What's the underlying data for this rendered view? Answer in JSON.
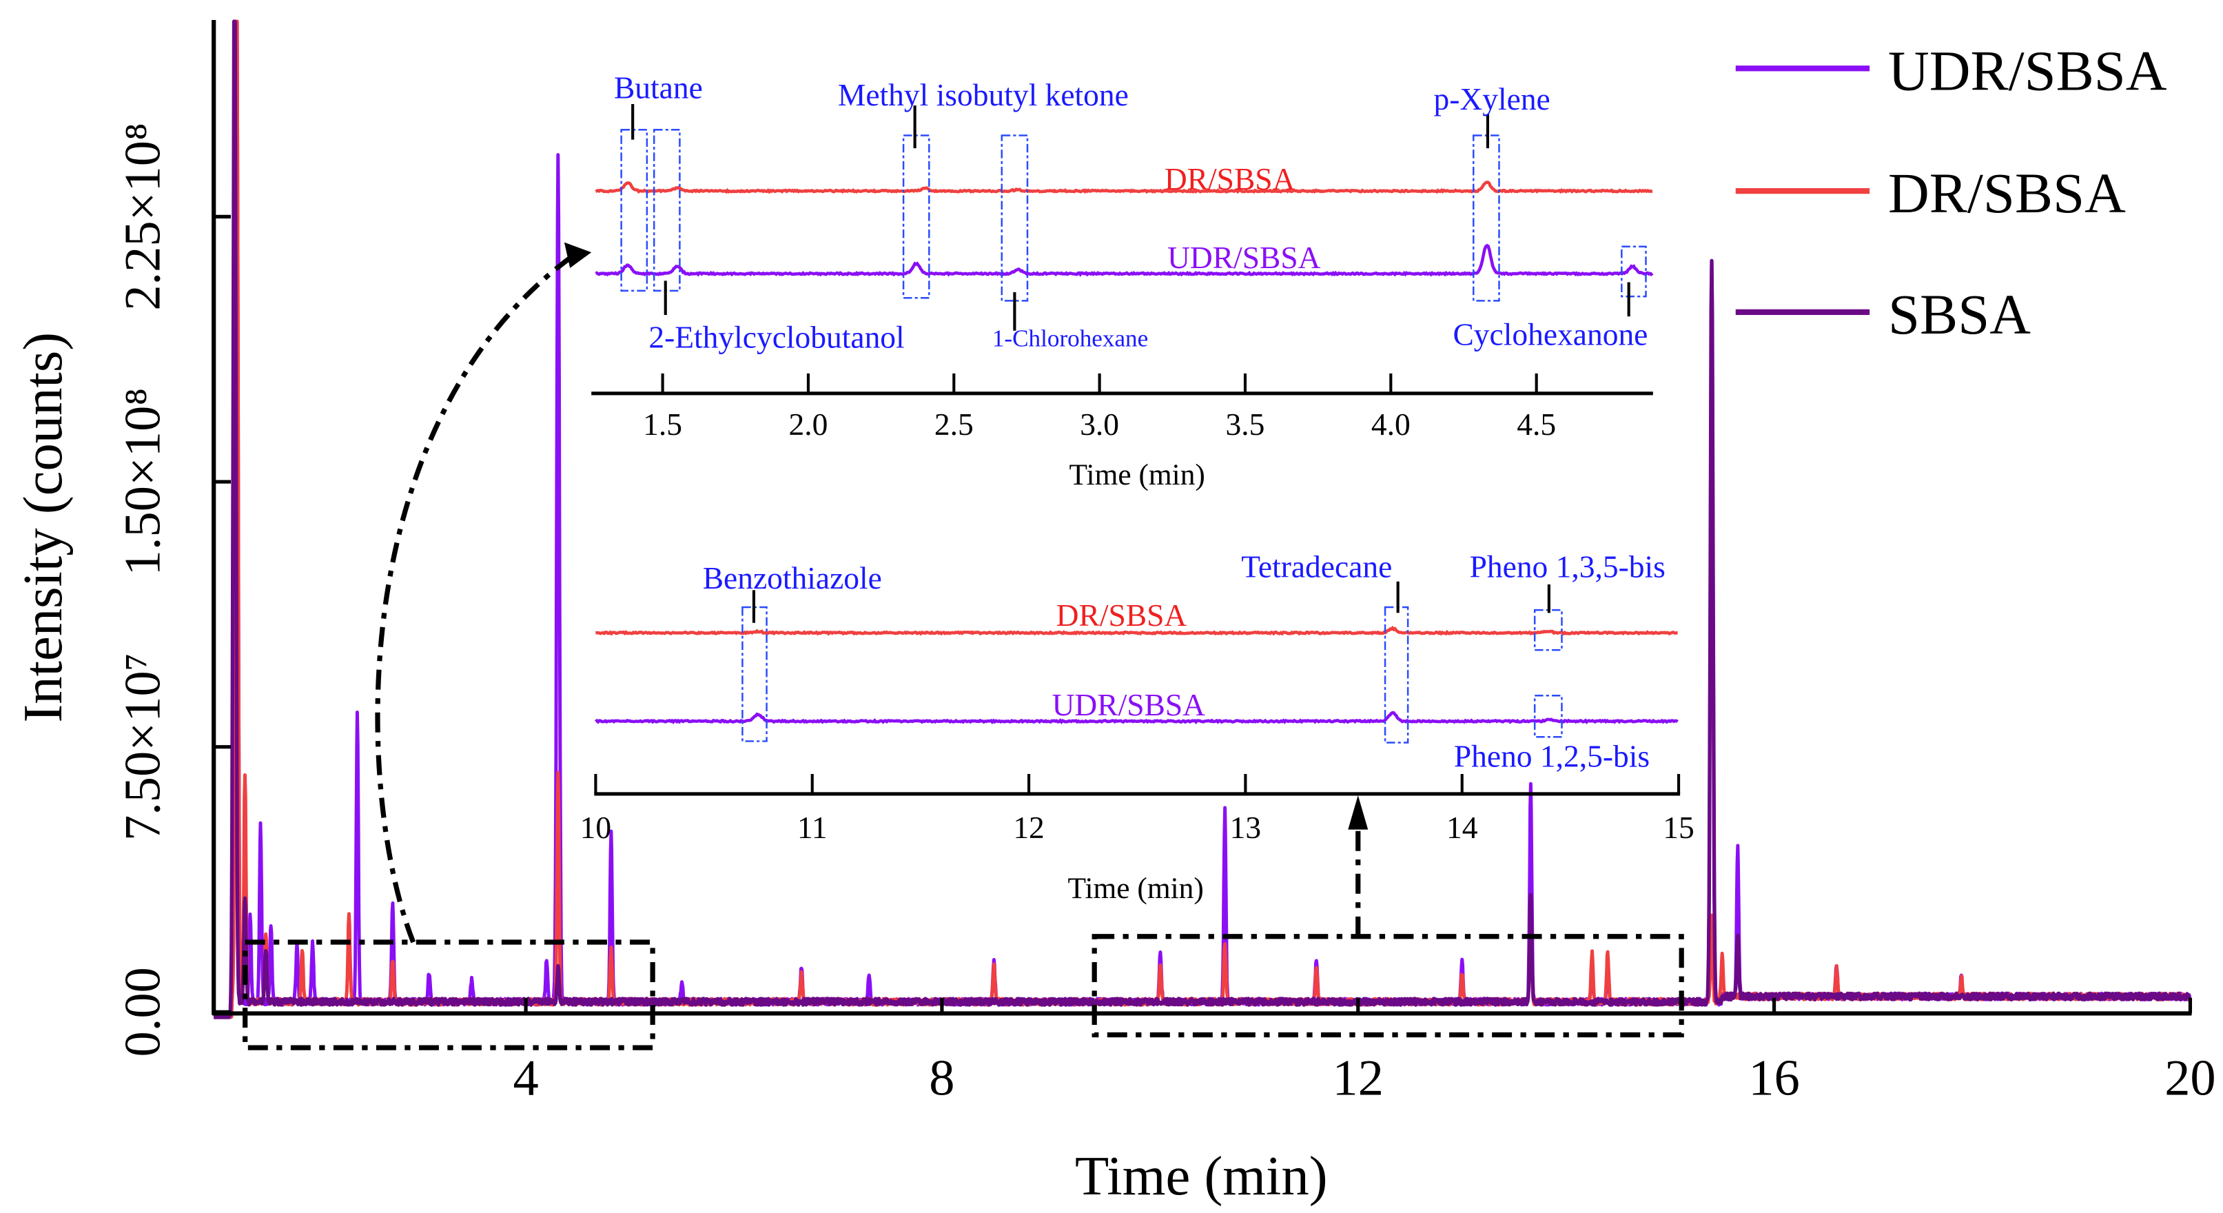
{
  "chart_data": {
    "type": "line",
    "xlabel": "Time (min)",
    "ylabel": "Intensity (counts)",
    "xlim": [
      1,
      20
    ],
    "ylim": [
      0,
      280000000
    ],
    "xticks": [
      4,
      8,
      12,
      16,
      20
    ],
    "xtick_labels": [
      "4",
      "8",
      "12",
      "16",
      "20"
    ],
    "yticks": [
      0,
      75000000,
      150000000,
      225000000
    ],
    "ytick_labels": [
      "0.00",
      "7.50×10⁷",
      "1.50×10⁸",
      "2.25×10⁸"
    ],
    "legend": {
      "placement": "top-right",
      "entries": [
        "UDR/SBSA",
        "DR/SBSA",
        "SBSA"
      ]
    },
    "colors": {
      "UDR/SBSA": "#8a0ff5",
      "DR/SBSA": "#f04040",
      "SBSA": "#6a0a86",
      "annotation": "#1a1aff"
    },
    "series": [
      {
        "name": "UDR/SBSA",
        "peaks": [
          [
            1.22,
            300000000
          ],
          [
            1.35,
            25000000
          ],
          [
            1.45,
            50000000
          ],
          [
            1.55,
            22000000
          ],
          [
            1.8,
            16000000
          ],
          [
            1.95,
            17000000
          ],
          [
            2.38,
            82000000
          ],
          [
            2.72,
            28000000
          ],
          [
            3.07,
            8000000
          ],
          [
            3.48,
            6000000
          ],
          [
            4.2,
            12000000
          ],
          [
            4.31,
            240000000
          ],
          [
            4.82,
            49000000
          ],
          [
            5.5,
            6000000
          ],
          [
            6.65,
            10000000
          ],
          [
            7.3,
            8000000
          ],
          [
            8.5,
            12000000
          ],
          [
            10.1,
            14000000
          ],
          [
            10.72,
            54000000
          ],
          [
            11.6,
            12000000
          ],
          [
            13.0,
            12000000
          ],
          [
            13.66,
            62000000
          ],
          [
            14.25,
            10000000
          ],
          [
            14.4,
            12000000
          ],
          [
            15.4,
            210000000
          ],
          [
            15.65,
            42000000
          ],
          [
            16.6,
            8000000
          ],
          [
            17.8,
            6000000
          ]
        ]
      },
      {
        "name": "DR/SBSA",
        "peaks": [
          [
            1.22,
            300000000
          ],
          [
            1.3,
            65000000
          ],
          [
            1.5,
            20000000
          ],
          [
            1.85,
            15000000
          ],
          [
            2.3,
            25000000
          ],
          [
            2.72,
            12000000
          ],
          [
            4.31,
            65000000
          ],
          [
            4.82,
            15000000
          ],
          [
            6.65,
            8000000
          ],
          [
            8.5,
            10000000
          ],
          [
            10.1,
            10000000
          ],
          [
            10.72,
            17000000
          ],
          [
            11.6,
            10000000
          ],
          [
            13.0,
            8000000
          ],
          [
            13.66,
            28000000
          ],
          [
            14.25,
            14000000
          ],
          [
            14.4,
            14000000
          ],
          [
            15.4,
            25000000
          ],
          [
            15.5,
            12000000
          ],
          [
            16.6,
            8000000
          ],
          [
            17.8,
            5000000
          ]
        ]
      },
      {
        "name": "SBSA",
        "peaks": [
          [
            1.2,
            300000000
          ],
          [
            1.3,
            30000000
          ],
          [
            1.5,
            15000000
          ],
          [
            4.31,
            10000000
          ],
          [
            13.66,
            30000000
          ],
          [
            15.4,
            210000000
          ],
          [
            15.65,
            17000000
          ]
        ]
      }
    ],
    "insets": [
      {
        "xlabel": "Time (min)",
        "xlim": [
          1.27,
          4.9
        ],
        "xticks": [
          1.5,
          2.0,
          2.5,
          3.0,
          3.5,
          4.0,
          4.5
        ],
        "xtick_labels": [
          "1.5",
          "2.0",
          "2.5",
          "3.0",
          "3.5",
          "4.0",
          "4.5"
        ],
        "trace_labels": {
          "dr": "DR/SBSA",
          "udr": "UDR/SBSA"
        },
        "dr_peaks": [
          [
            1.38,
            6
          ],
          [
            1.55,
            2
          ],
          [
            2.4,
            2
          ],
          [
            2.72,
            1
          ],
          [
            4.33,
            6
          ]
        ],
        "udr_peaks": [
          [
            1.38,
            6
          ],
          [
            1.55,
            5
          ],
          [
            2.37,
            7
          ],
          [
            2.72,
            3
          ],
          [
            4.33,
            20
          ],
          [
            4.83,
            5
          ]
        ],
        "annotations": [
          "Butane",
          "Methyl isobutyl ketone",
          "p-Xylene",
          "2-Ethylcyclobutanol",
          "1-Chlorohexane",
          "Cyclohexanone"
        ]
      },
      {
        "xlabel": "Time (min)",
        "xlim": [
          10,
          15
        ],
        "xticks": [
          10,
          11,
          12,
          13,
          14,
          15
        ],
        "xtick_labels": [
          "10",
          "11",
          "12",
          "13",
          "14",
          "15"
        ],
        "trace_labels": {
          "dr": "DR/SBSA",
          "udr": "UDR/SBSA"
        },
        "dr_peaks": [
          [
            10.75,
            1
          ],
          [
            13.68,
            3
          ],
          [
            14.4,
            1
          ]
        ],
        "udr_peaks": [
          [
            10.75,
            5
          ],
          [
            13.68,
            6
          ],
          [
            14.4,
            1
          ]
        ],
        "annotations": [
          "Benzothiazole",
          "Tetradecane",
          "Pheno 1,3,5-bis",
          "Pheno 1,2,5-bis"
        ]
      }
    ]
  }
}
